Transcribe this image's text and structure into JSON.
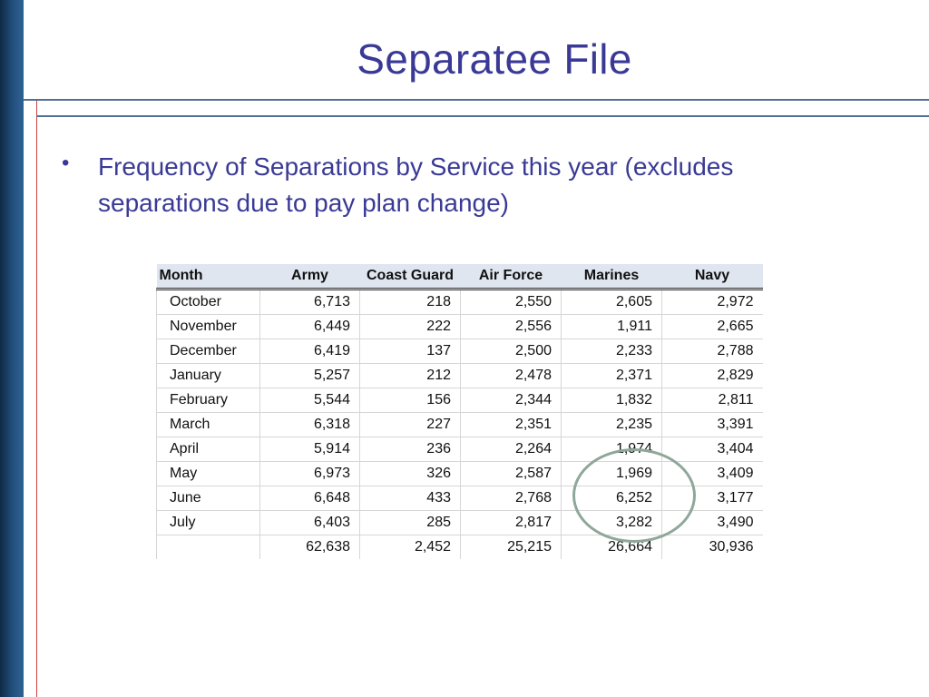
{
  "slide": {
    "title": "Separatee File",
    "bullet": "Frequency of Separations by Service this year (excludes separations due to pay plan change)"
  },
  "table": {
    "headers": [
      "Month",
      "Army",
      "Coast Guard",
      "Air Force",
      "Marines",
      "Navy"
    ],
    "rows": [
      {
        "month": "October",
        "values": [
          "6,713",
          "218",
          "2,550",
          "2,605",
          "2,972"
        ]
      },
      {
        "month": "November",
        "values": [
          "6,449",
          "222",
          "2,556",
          "1,911",
          "2,665"
        ]
      },
      {
        "month": "December",
        "values": [
          "6,419",
          "137",
          "2,500",
          "2,233",
          "2,788"
        ]
      },
      {
        "month": "January",
        "values": [
          "5,257",
          "212",
          "2,478",
          "2,371",
          "2,829"
        ]
      },
      {
        "month": "February",
        "values": [
          "5,544",
          "156",
          "2,344",
          "1,832",
          "2,811"
        ]
      },
      {
        "month": "March",
        "values": [
          "6,318",
          "227",
          "2,351",
          "2,235",
          "3,391"
        ]
      },
      {
        "month": "April",
        "values": [
          "5,914",
          "236",
          "2,264",
          "1,974",
          "3,404"
        ]
      },
      {
        "month": "May",
        "values": [
          "6,973",
          "326",
          "2,587",
          "1,969",
          "3,409"
        ]
      },
      {
        "month": "June",
        "values": [
          "6,648",
          "433",
          "2,768",
          "6,252",
          "3,177"
        ]
      },
      {
        "month": "July",
        "values": [
          "6,403",
          "285",
          "2,817",
          "3,282",
          "3,490"
        ]
      }
    ],
    "totals": [
      "62,638",
      "2,452",
      "25,215",
      "26,664",
      "30,936"
    ]
  },
  "colors": {
    "title": "#3a3a96",
    "left_bar": "#1f4a75",
    "header_bg": "#dfe6ef",
    "highlight": "#8fa79a"
  }
}
